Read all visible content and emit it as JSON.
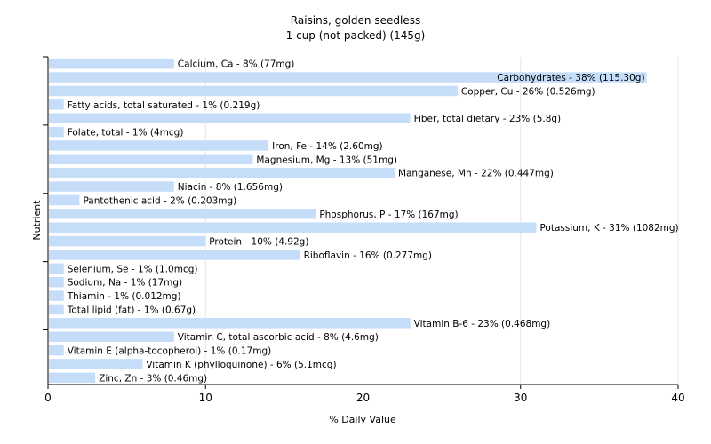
{
  "chart_data": {
    "type": "bar",
    "orientation": "horizontal",
    "title": "Raisins, golden seedless",
    "subtitle": "1 cup (not packed) (145g)",
    "xlabel": "% Daily Value",
    "ylabel": "Nutrient",
    "xlim": [
      0,
      40
    ],
    "xticks": [
      0,
      10,
      20,
      30,
      40
    ],
    "grid": true,
    "bar_color": "#c6ddfa",
    "gridline_color": "#e6e6e6",
    "categories": [
      "Calcium, Ca",
      "Carbohydrates",
      "Copper, Cu",
      "Fatty acids, total saturated",
      "Fiber, total dietary",
      "Folate, total",
      "Iron, Fe",
      "Magnesium, Mg",
      "Manganese, Mn",
      "Niacin",
      "Pantothenic acid",
      "Phosphorus, P",
      "Potassium, K",
      "Protein",
      "Riboflavin",
      "Selenium, Se",
      "Sodium, Na",
      "Thiamin",
      "Total lipid (fat)",
      "Vitamin B-6",
      "Vitamin C, total ascorbic acid",
      "Vitamin E (alpha-tocopherol)",
      "Vitamin K (phylloquinone)",
      "Zinc, Zn"
    ],
    "values": [
      8,
      38,
      26,
      1,
      23,
      1,
      14,
      13,
      22,
      8,
      2,
      17,
      31,
      10,
      16,
      1,
      1,
      1,
      1,
      23,
      8,
      1,
      6,
      3
    ],
    "labels": [
      "Calcium, Ca - 8% (77mg)",
      "Carbohydrates - 38% (115.30g)",
      "Copper, Cu - 26% (0.526mg)",
      "Fatty acids, total saturated - 1% (0.219g)",
      "Fiber, total dietary - 23% (5.8g)",
      "Folate, total - 1% (4mcg)",
      "Iron, Fe - 14% (2.60mg)",
      "Magnesium, Mg - 13% (51mg)",
      "Manganese, Mn - 22% (0.447mg)",
      "Niacin - 8% (1.656mg)",
      "Pantothenic acid - 2% (0.203mg)",
      "Phosphorus, P - 17% (167mg)",
      "Potassium, K - 31% (1082mg)",
      "Protein - 10% (4.92g)",
      "Riboflavin - 16% (0.277mg)",
      "Selenium, Se - 1% (1.0mcg)",
      "Sodium, Na - 1% (17mg)",
      "Thiamin - 1% (0.012mg)",
      "Total lipid (fat) - 1% (0.67g)",
      "Vitamin B-6 - 23% (0.468mg)",
      "Vitamin C, total ascorbic acid - 8% (4.6mg)",
      "Vitamin E (alpha-tocopherol) - 1% (0.17mg)",
      "Vitamin K (phylloquinone) - 6% (5.1mcg)",
      "Zinc, Zn - 3% (0.46mg)"
    ]
  }
}
